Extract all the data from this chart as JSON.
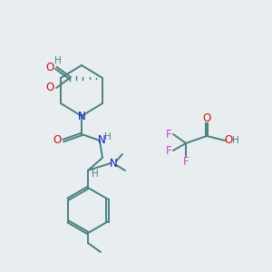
{
  "background_color": "#e8edf0",
  "bond_color": "#4a8080",
  "nitrogen_color": "#1414cc",
  "oxygen_color": "#cc1414",
  "fluorine_color": "#cc44cc",
  "hydrogen_color": "#4a8080",
  "figsize": [
    3.0,
    3.0
  ],
  "dpi": 100,
  "xlim": [
    0,
    300
  ],
  "ylim": [
    0,
    300
  ]
}
